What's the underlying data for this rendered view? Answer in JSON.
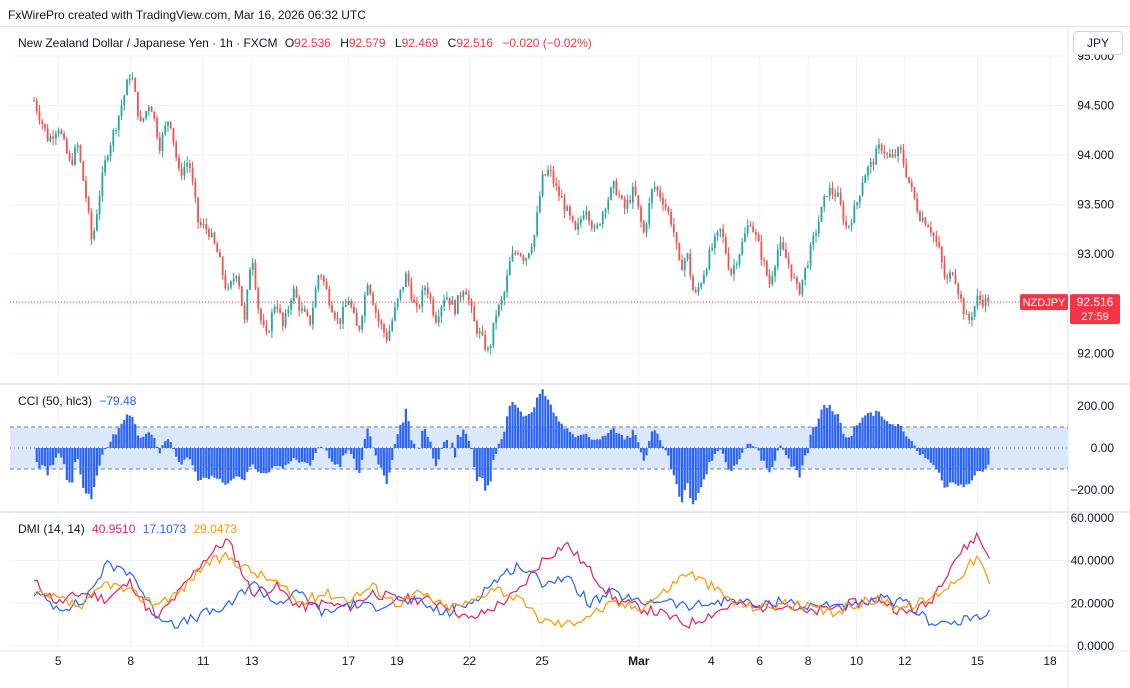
{
  "attribution": "FxWirePro created with TradingView.com, Mar 16, 2026 06:32 UTC",
  "header": {
    "title": "New Zealand Dollar / Japanese Yen · 1h · FXCM",
    "o_key": "O",
    "o": "92.536",
    "h_key": "H",
    "h": "92.579",
    "l_key": "L",
    "l": "92.469",
    "c_key": "C",
    "c": "92.516",
    "change": "−0.020 (−0.02%)",
    "currency_button": "JPY"
  },
  "colors": {
    "up": "#26a69a",
    "down": "#ef5350",
    "cci": "#2962ff",
    "cci_fill": "#dbe8fb",
    "plus_di": "#e91e63",
    "minus_di": "#2962ff",
    "adx": "#ff9800",
    "last_price_bg": "#f23645"
  },
  "price_label": {
    "symbol": "NZDJPY",
    "price": "92.516",
    "countdown": "27:59"
  },
  "cci_legend": {
    "name": "CCI (50, hlc3)",
    "value": "−79.48"
  },
  "dmi_legend": {
    "name": "DMI (14, 14)",
    "plus_di": "40.9510",
    "minus_di": "17.1073",
    "adx": "29.0473"
  },
  "chart_data": [
    {
      "type": "candlestick",
      "interval": "1h",
      "ylim": [
        91.7,
        95.0
      ],
      "yticks": [
        "92.000",
        "92.500",
        "93.000",
        "93.500",
        "94.000",
        "94.500",
        "95.000"
      ],
      "x_labels": [
        {
          "label": "5",
          "day": 5
        },
        {
          "label": "8",
          "day": 8
        },
        {
          "label": "11",
          "day": 11
        },
        {
          "label": "13",
          "day": 13
        },
        {
          "label": "17",
          "day": 17
        },
        {
          "label": "19",
          "day": 19
        },
        {
          "label": "22",
          "day": 22
        },
        {
          "label": "25",
          "day": 25
        },
        {
          "label": "Mar",
          "day": 29
        },
        {
          "label": "4",
          "day": 32
        },
        {
          "label": "6",
          "day": 34
        },
        {
          "label": "8",
          "day": 36
        },
        {
          "label": "10",
          "day": 38
        },
        {
          "label": "12",
          "day": 40
        },
        {
          "label": "15",
          "day": 43
        },
        {
          "label": "18",
          "day": 46
        }
      ],
      "path": [
        [
          4.0,
          94.55
        ],
        [
          4.6,
          94.15
        ],
        [
          5.0,
          94.3
        ],
        [
          5.5,
          93.9
        ],
        [
          5.8,
          94.1
        ],
        [
          6.2,
          93.5
        ],
        [
          6.4,
          93.1
        ],
        [
          6.7,
          93.6
        ],
        [
          7.0,
          94.0
        ],
        [
          7.5,
          94.4
        ],
        [
          8.0,
          94.85
        ],
        [
          8.4,
          94.3
        ],
        [
          8.8,
          94.55
        ],
        [
          9.2,
          94.1
        ],
        [
          9.6,
          94.4
        ],
        [
          10.0,
          93.8
        ],
        [
          10.4,
          93.95
        ],
        [
          10.8,
          93.3
        ],
        [
          11.2,
          93.25
        ],
        [
          11.6,
          93.0
        ],
        [
          12.0,
          92.6
        ],
        [
          12.4,
          92.85
        ],
        [
          12.7,
          92.3
        ],
        [
          13.0,
          93.05
        ],
        [
          13.3,
          92.4
        ],
        [
          13.6,
          92.15
        ],
        [
          14.0,
          92.55
        ],
        [
          14.3,
          92.25
        ],
        [
          14.7,
          92.65
        ],
        [
          15.0,
          92.45
        ],
        [
          15.4,
          92.3
        ],
        [
          15.8,
          92.85
        ],
        [
          16.2,
          92.55
        ],
        [
          16.6,
          92.3
        ],
        [
          17.0,
          92.55
        ],
        [
          17.4,
          92.2
        ],
        [
          17.8,
          92.75
        ],
        [
          18.2,
          92.35
        ],
        [
          18.6,
          92.15
        ],
        [
          19.0,
          92.5
        ],
        [
          19.4,
          92.8
        ],
        [
          19.8,
          92.4
        ],
        [
          20.2,
          92.7
        ],
        [
          20.6,
          92.35
        ],
        [
          21.0,
          92.6
        ],
        [
          21.4,
          92.45
        ],
        [
          21.8,
          92.7
        ],
        [
          22.2,
          92.3
        ],
        [
          22.5,
          92.15
        ],
        [
          22.8,
          92.0
        ],
        [
          23.1,
          92.4
        ],
        [
          23.4,
          92.55
        ],
        [
          23.7,
          92.95
        ],
        [
          24.0,
          93.05
        ],
        [
          24.3,
          92.95
        ],
        [
          24.7,
          93.2
        ],
        [
          25.0,
          93.75
        ],
        [
          25.3,
          93.85
        ],
        [
          25.6,
          93.65
        ],
        [
          26.0,
          93.45
        ],
        [
          26.4,
          93.2
        ],
        [
          26.8,
          93.5
        ],
        [
          27.2,
          93.2
        ],
        [
          27.6,
          93.5
        ],
        [
          28.0,
          93.7
        ],
        [
          28.4,
          93.45
        ],
        [
          28.8,
          93.65
        ],
        [
          29.2,
          93.2
        ],
        [
          29.6,
          93.7
        ],
        [
          30.0,
          93.55
        ],
        [
          30.4,
          93.3
        ],
        [
          30.7,
          92.85
        ],
        [
          31.0,
          93.0
        ],
        [
          31.3,
          92.55
        ],
        [
          31.6,
          92.75
        ],
        [
          32.0,
          93.05
        ],
        [
          32.4,
          93.25
        ],
        [
          32.8,
          92.8
        ],
        [
          33.2,
          93.05
        ],
        [
          33.6,
          93.35
        ],
        [
          34.0,
          93.05
        ],
        [
          34.4,
          92.7
        ],
        [
          34.8,
          93.1
        ],
        [
          35.2,
          92.9
        ],
        [
          35.6,
          92.6
        ],
        [
          36.0,
          92.95
        ],
        [
          36.4,
          93.3
        ],
        [
          36.8,
          93.65
        ],
        [
          37.2,
          93.6
        ],
        [
          37.6,
          93.25
        ],
        [
          38.0,
          93.5
        ],
        [
          38.3,
          93.8
        ],
        [
          38.6,
          93.9
        ],
        [
          39.0,
          94.1
        ],
        [
          39.4,
          93.95
        ],
        [
          39.8,
          94.05
        ],
        [
          40.2,
          93.7
        ],
        [
          40.6,
          93.4
        ],
        [
          41.0,
          93.3
        ],
        [
          41.4,
          93.05
        ],
        [
          41.7,
          92.7
        ],
        [
          42.0,
          92.85
        ],
        [
          42.3,
          92.55
        ],
        [
          42.6,
          92.3
        ],
        [
          43.0,
          92.55
        ],
        [
          43.4,
          92.52
        ]
      ],
      "last_price": 92.516
    },
    {
      "type": "histogram",
      "name": "CCI (50, hlc3)",
      "ylim": [
        -300,
        300
      ],
      "yticks": [
        "200.00",
        "0.00",
        "−200.00"
      ],
      "bands": [
        100,
        -100
      ],
      "last_value": -79.48
    },
    {
      "type": "line",
      "name": "DMI (14, 14)",
      "ylim": [
        0,
        60
      ],
      "yticks": [
        "60.0000",
        "40.0000",
        "20.0000",
        "0.0000"
      ],
      "series": [
        {
          "key": "plus_di",
          "path": [
            [
              4,
              30
            ],
            [
              5,
              20
            ],
            [
              6,
              25
            ],
            [
              7,
              22
            ],
            [
              8,
              30
            ],
            [
              9,
              12
            ],
            [
              10,
              25
            ],
            [
              11,
              40
            ],
            [
              12,
              50
            ],
            [
              13,
              25
            ],
            [
              14,
              28
            ],
            [
              15,
              18
            ],
            [
              16,
              20
            ],
            [
              17,
              18
            ],
            [
              18,
              25
            ],
            [
              19,
              22
            ],
            [
              20,
              22
            ],
            [
              21,
              20
            ],
            [
              22,
              12
            ],
            [
              23,
              18
            ],
            [
              24,
              25
            ],
            [
              25,
              40
            ],
            [
              26,
              48
            ],
            [
              27,
              35
            ],
            [
              28,
              22
            ],
            [
              29,
              18
            ],
            [
              30,
              15
            ],
            [
              31,
              10
            ],
            [
              32,
              15
            ],
            [
              33,
              20
            ],
            [
              34,
              18
            ],
            [
              35,
              20
            ],
            [
              36,
              15
            ],
            [
              37,
              18
            ],
            [
              38,
              20
            ],
            [
              39,
              22
            ],
            [
              40,
              15
            ],
            [
              41,
              20
            ],
            [
              42,
              40
            ],
            [
              43,
              52
            ],
            [
              43.5,
              41
            ]
          ]
        },
        {
          "key": "minus_di",
          "path": [
            [
              4,
              25
            ],
            [
              5,
              18
            ],
            [
              6,
              20
            ],
            [
              7,
              38
            ],
            [
              8,
              35
            ],
            [
              9,
              15
            ],
            [
              10,
              10
            ],
            [
              11,
              15
            ],
            [
              12,
              18
            ],
            [
              13,
              30
            ],
            [
              14,
              20
            ],
            [
              15,
              25
            ],
            [
              16,
              15
            ],
            [
              17,
              20
            ],
            [
              18,
              18
            ],
            [
              19,
              22
            ],
            [
              20,
              20
            ],
            [
              21,
              15
            ],
            [
              22,
              20
            ],
            [
              23,
              30
            ],
            [
              24,
              38
            ],
            [
              25,
              30
            ],
            [
              26,
              32
            ],
            [
              27,
              20
            ],
            [
              28,
              25
            ],
            [
              29,
              20
            ],
            [
              30,
              22
            ],
            [
              31,
              18
            ],
            [
              32,
              20
            ],
            [
              33,
              22
            ],
            [
              34,
              18
            ],
            [
              35,
              22
            ],
            [
              36,
              18
            ],
            [
              37,
              20
            ],
            [
              38,
              18
            ],
            [
              39,
              22
            ],
            [
              40,
              20
            ],
            [
              41,
              12
            ],
            [
              42,
              10
            ],
            [
              43,
              14
            ],
            [
              43.5,
              17
            ]
          ]
        },
        {
          "key": "adx",
          "path": [
            [
              4,
              24
            ],
            [
              5,
              22
            ],
            [
              6,
              18
            ],
            [
              7,
              30
            ],
            [
              8,
              25
            ],
            [
              9,
              20
            ],
            [
              10,
              25
            ],
            [
              11,
              38
            ],
            [
              12,
              42
            ],
            [
              13,
              35
            ],
            [
              14,
              30
            ],
            [
              15,
              20
            ],
            [
              16,
              25
            ],
            [
              17,
              22
            ],
            [
              18,
              28
            ],
            [
              19,
              20
            ],
            [
              20,
              25
            ],
            [
              21,
              18
            ],
            [
              22,
              20
            ],
            [
              23,
              28
            ],
            [
              24,
              22
            ],
            [
              25,
              12
            ],
            [
              26,
              10
            ],
            [
              27,
              15
            ],
            [
              28,
              20
            ],
            [
              29,
              18
            ],
            [
              30,
              25
            ],
            [
              31,
              35
            ],
            [
              32,
              28
            ],
            [
              33,
              20
            ],
            [
              34,
              18
            ],
            [
              35,
              20
            ],
            [
              36,
              18
            ],
            [
              37,
              15
            ],
            [
              38,
              20
            ],
            [
              39,
              22
            ],
            [
              40,
              18
            ],
            [
              41,
              22
            ],
            [
              42,
              30
            ],
            [
              43,
              42
            ],
            [
              43.5,
              29
            ]
          ]
        }
      ]
    }
  ]
}
